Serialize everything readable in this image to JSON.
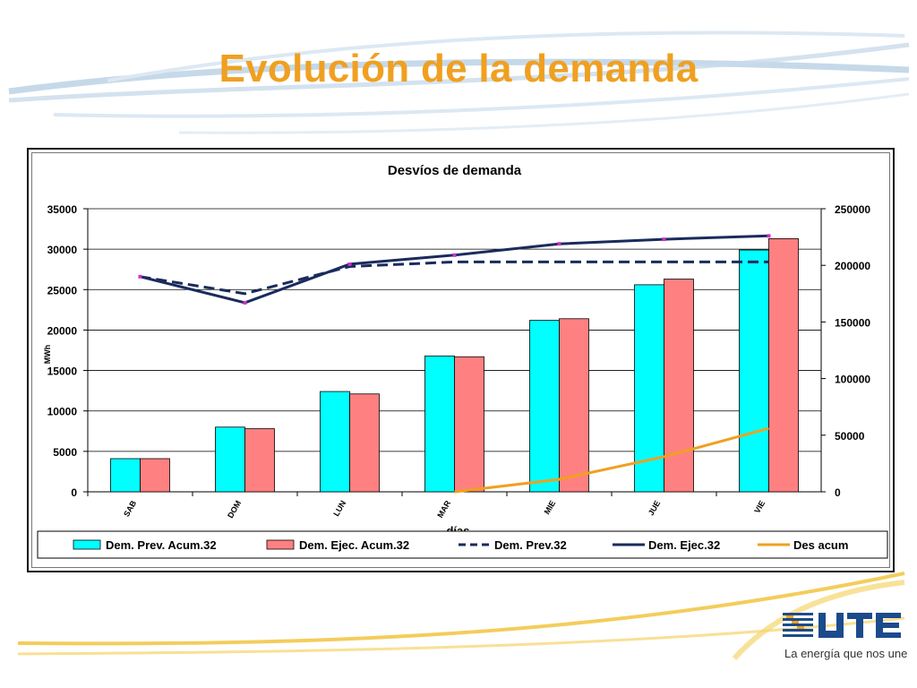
{
  "slide": {
    "title": "Evolución de la demanda",
    "colors": {
      "title": "#f0a020",
      "swoosh": "#9bbad6",
      "gold": "#f0c040"
    }
  },
  "brand": {
    "logo_text": "UTE",
    "tagline": "La energía que nos une",
    "logo_icon": "ute-logo-icon",
    "colors": {
      "stripes_blue": "#1c4b8c",
      "stripes_orange": "#f0a020",
      "text_blue": "#1c4b8c"
    }
  },
  "chart_data": {
    "type": "bar",
    "title": "Desvíos de demanda",
    "xlabel": "días",
    "ylabel": "MWh",
    "categories": [
      "SAB",
      "DOM",
      "LUN",
      "MAR",
      "MIE",
      "JUE",
      "VIE"
    ],
    "ylim": [
      0,
      35000
    ],
    "y_ticks": [
      "0",
      "5000",
      "10000",
      "15000",
      "20000",
      "25000",
      "30000",
      "35000"
    ],
    "y2lim": [
      0,
      250000
    ],
    "y2_ticks": [
      "0",
      "50000",
      "100000",
      "150000",
      "200000",
      "250000"
    ],
    "grid": true,
    "legend_position": "bottom",
    "series": [
      {
        "name": "Dem. Prev. Acum.32",
        "kind": "bar",
        "axis": "left",
        "color": "#00ffff",
        "values": [
          4100,
          8000,
          12400,
          16800,
          21200,
          25600,
          29900
        ]
      },
      {
        "name": "Dem. Ejec. Acum.32",
        "kind": "bar",
        "axis": "left",
        "color": "#ff8080",
        "values": [
          4100,
          7800,
          12100,
          16700,
          21400,
          26300,
          31300
        ]
      },
      {
        "name": "Dem. Prev.32",
        "kind": "line",
        "axis": "right",
        "dashed": true,
        "color": "#1a2b5c",
        "values": [
          190000,
          175000,
          199000,
          203000,
          203000,
          203000,
          203000
        ]
      },
      {
        "name": "Dem. Ejec.32",
        "kind": "line",
        "axis": "right",
        "dashed": false,
        "color": "#1a2b5c",
        "marker_color": "#cc33cc",
        "values": [
          190000,
          167000,
          201000,
          209000,
          219000,
          223000,
          226000
        ]
      },
      {
        "name": "Des acum",
        "kind": "line",
        "axis": "right",
        "dashed": false,
        "color": "#f0a020",
        "values": [
          null,
          null,
          null,
          0,
          11000,
          31000,
          56000
        ]
      }
    ]
  }
}
